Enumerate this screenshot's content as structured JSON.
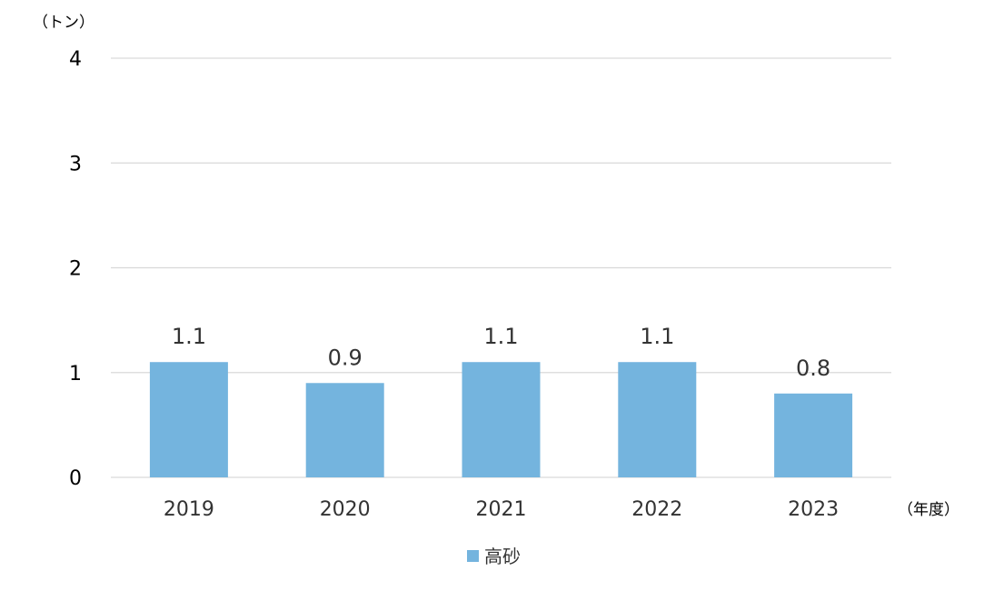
{
  "chart_data": {
    "type": "bar",
    "y_unit_label": "（トン）",
    "x_unit_label": "（年度）",
    "categories": [
      "2019",
      "2020",
      "2021",
      "2022",
      "2023"
    ],
    "series": [
      {
        "name": "高砂",
        "values": [
          1.1,
          0.9,
          1.1,
          1.1,
          0.8
        ]
      }
    ],
    "data_labels": [
      "1.1",
      "0.9",
      "1.1",
      "1.1",
      "0.8"
    ],
    "ylim": [
      0,
      4
    ],
    "yticks": [
      0,
      1,
      2,
      3,
      4
    ],
    "grid": true,
    "legend_position": "bottom-center"
  },
  "colors": {
    "bar": "#74b4de",
    "grid": "#d9d9d9",
    "axis_text": "#333333",
    "tick_text": "#000000"
  }
}
